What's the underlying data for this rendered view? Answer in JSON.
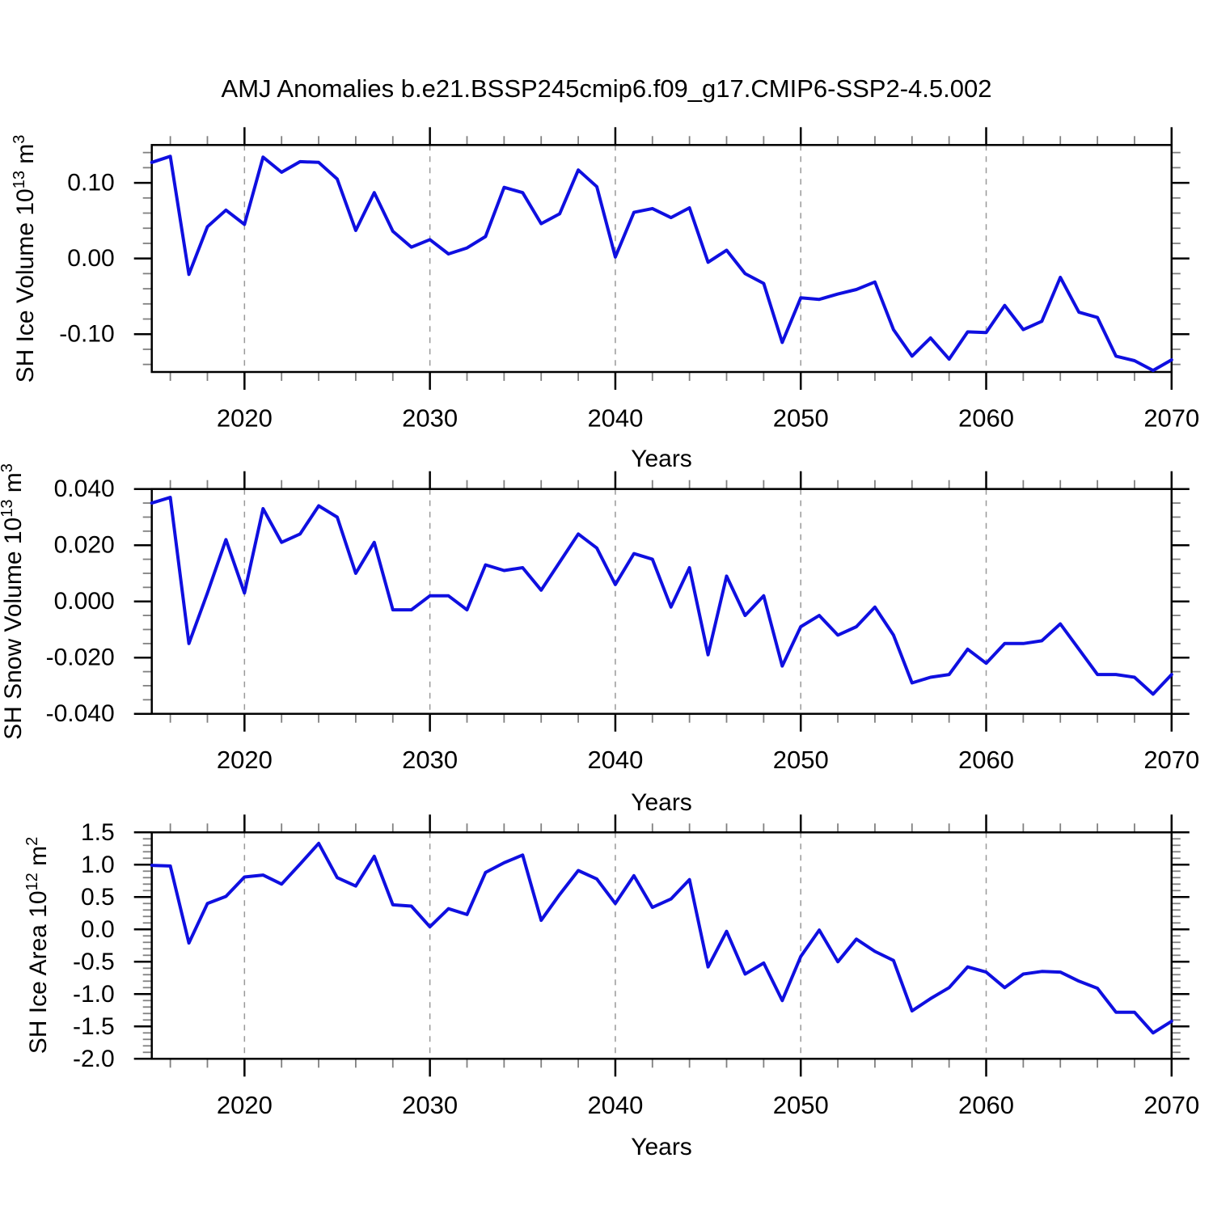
{
  "title": "AMJ Anomalies b.e21.BSSP245cmip6.f09_g17.CMIP6-SSP2-4.5.002",
  "chart_data": {
    "type": "line",
    "title": "AMJ Anomalies b.e21.BSSP245cmip6.f09_g17.CMIP6-SSP2-4.5.002",
    "xlabel": "Years",
    "x": [
      2015,
      2016,
      2017,
      2018,
      2019,
      2020,
      2021,
      2022,
      2023,
      2024,
      2025,
      2026,
      2027,
      2028,
      2029,
      2030,
      2031,
      2032,
      2033,
      2034,
      2035,
      2036,
      2037,
      2038,
      2039,
      2040,
      2041,
      2042,
      2043,
      2044,
      2045,
      2046,
      2047,
      2048,
      2049,
      2050,
      2051,
      2052,
      2053,
      2054,
      2055,
      2056,
      2057,
      2058,
      2059,
      2060,
      2061,
      2062,
      2063,
      2064,
      2065,
      2066,
      2067,
      2068,
      2069,
      2070
    ],
    "xlim": [
      2015,
      2070
    ],
    "xticks": [
      2020,
      2030,
      2040,
      2050,
      2060,
      2070
    ],
    "xtick_labels": [
      "2020",
      "2030",
      "2040",
      "2050",
      "2060",
      "2070"
    ],
    "x_minor_step": 2,
    "grid": "vertical dashed gridlines at decade ticks",
    "legend": "none",
    "line_color": "#0f0fe0",
    "panels": [
      {
        "name": "SH Ice Volume",
        "ylabel_prefix": "SH Ice Volume 10",
        "ylabel_exp1": "13",
        "ylabel_mid": " m",
        "ylabel_exp2": "3",
        "ylim": [
          -0.15,
          0.15
        ],
        "yticks": [
          0.1,
          0.0,
          -0.1
        ],
        "ytick_labels": [
          "0.10",
          "0.00",
          "-0.10"
        ],
        "yminor_step": 0.02,
        "values": [
          0.127,
          0.135,
          -0.021,
          0.042,
          0.064,
          0.045,
          0.134,
          0.114,
          0.128,
          0.127,
          0.105,
          0.037,
          0.087,
          0.036,
          0.015,
          0.025,
          0.006,
          0.014,
          0.029,
          0.094,
          0.087,
          0.046,
          0.059,
          0.117,
          0.095,
          0.002,
          0.061,
          0.066,
          0.054,
          0.067,
          -0.005,
          0.011,
          -0.02,
          -0.033,
          -0.111,
          -0.052,
          -0.054,
          -0.047,
          -0.041,
          -0.031,
          -0.094,
          -0.129,
          -0.105,
          -0.133,
          -0.097,
          -0.098,
          -0.062,
          -0.094,
          -0.083,
          -0.025,
          -0.071,
          -0.078,
          -0.129,
          -0.135,
          -0.148,
          -0.134
        ]
      },
      {
        "name": "SH Snow Volume",
        "ylabel_prefix": "SH Snow Volume 10",
        "ylabel_exp1": "13",
        "ylabel_mid": " m",
        "ylabel_exp2": "3",
        "ylim": [
          -0.04,
          0.04
        ],
        "yticks": [
          0.04,
          0.02,
          0.0,
          -0.02,
          -0.04
        ],
        "ytick_labels": [
          "0.040",
          "0.020",
          "0.000",
          "-0.020",
          "-0.040"
        ],
        "yminor_step": 0.005,
        "values": [
          0.035,
          0.037,
          -0.015,
          0.003,
          0.022,
          0.003,
          0.033,
          0.021,
          0.024,
          0.034,
          0.03,
          0.01,
          0.021,
          -0.003,
          -0.003,
          0.002,
          0.002,
          -0.003,
          0.013,
          0.011,
          0.012,
          0.004,
          0.014,
          0.024,
          0.019,
          0.006,
          0.017,
          0.015,
          -0.002,
          0.012,
          -0.019,
          0.009,
          -0.005,
          0.002,
          -0.023,
          -0.009,
          -0.005,
          -0.012,
          -0.009,
          -0.002,
          -0.012,
          -0.029,
          -0.027,
          -0.026,
          -0.017,
          -0.022,
          -0.015,
          -0.015,
          -0.014,
          -0.008,
          -0.017,
          -0.026,
          -0.026,
          -0.027,
          -0.033,
          -0.026
        ]
      },
      {
        "name": "SH Ice Area",
        "ylabel_prefix": "SH Ice Area 10",
        "ylabel_exp1": "12",
        "ylabel_mid": " m",
        "ylabel_exp2": "2",
        "ylim": [
          -2.0,
          1.5
        ],
        "yticks": [
          1.5,
          1.0,
          0.5,
          0.0,
          -0.5,
          -1.0,
          -1.5,
          -2.0
        ],
        "ytick_labels": [
          "1.5",
          "1.0",
          "0.5",
          "0.0",
          "-0.5",
          "-1.0",
          "-1.5",
          "-2.0"
        ],
        "yminor_step": 0.1,
        "values": [
          0.99,
          0.98,
          -0.21,
          0.4,
          0.51,
          0.81,
          0.84,
          0.7,
          1.01,
          1.33,
          0.8,
          0.67,
          1.13,
          0.38,
          0.36,
          0.04,
          0.32,
          0.23,
          0.88,
          1.03,
          1.15,
          0.14,
          0.54,
          0.91,
          0.78,
          0.4,
          0.83,
          0.34,
          0.47,
          0.77,
          -0.58,
          -0.03,
          -0.69,
          -0.52,
          -1.1,
          -0.42,
          -0.01,
          -0.5,
          -0.15,
          -0.34,
          -0.48,
          -1.26,
          -1.07,
          -0.9,
          -0.58,
          -0.66,
          -0.9,
          -0.69,
          -0.65,
          -0.66,
          -0.8,
          -0.91,
          -1.28,
          -1.28,
          -1.6,
          -1.42
        ]
      }
    ]
  },
  "colors": {
    "line": "#0f0fe0",
    "axis": "#000000",
    "minor_tick": "#808080",
    "gridline": "#999999",
    "background": "#ffffff"
  }
}
